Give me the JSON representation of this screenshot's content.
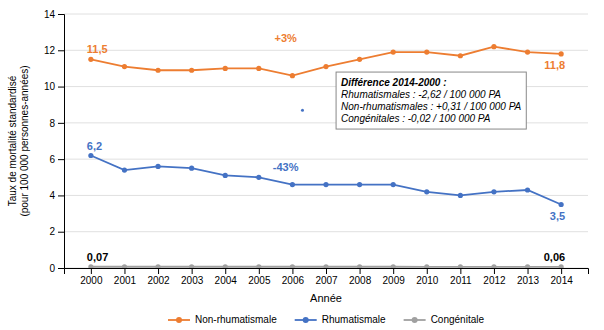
{
  "chart_data": {
    "type": "line",
    "x": [
      2000,
      2001,
      2002,
      2003,
      2004,
      2005,
      2006,
      2007,
      2008,
      2009,
      2010,
      2011,
      2012,
      2013,
      2014
    ],
    "xlim": [
      1999.2,
      2014.8
    ],
    "xticks": [
      2000,
      2001,
      2002,
      2003,
      2004,
      2005,
      2006,
      2007,
      2008,
      2009,
      2010,
      2011,
      2012,
      2013,
      2014
    ],
    "ylim": [
      0,
      14
    ],
    "yticks": [
      0,
      2,
      4,
      6,
      8,
      10,
      12,
      14
    ],
    "xlabel": "Année",
    "ylabel": "Taux de mortalité standardisé\n(pour 100 000 personnes-années)",
    "grid": "y",
    "legend": "bottom",
    "marker": "circle",
    "series": [
      {
        "name": "Non-rhumatismale",
        "color": "#ED7D31",
        "values": [
          11.5,
          11.1,
          10.9,
          10.9,
          11.0,
          11.0,
          10.6,
          11.1,
          11.5,
          11.9,
          11.9,
          11.7,
          12.2,
          11.9,
          11.8
        ]
      },
      {
        "name": "Rhumatismale",
        "color": "#4472C4",
        "values": [
          6.2,
          5.4,
          5.6,
          5.5,
          5.1,
          5.0,
          4.6,
          4.6,
          4.6,
          4.6,
          4.2,
          4.0,
          4.2,
          4.3,
          3.5
        ]
      },
      {
        "name": "Congénitale",
        "color": "#A0A0A0",
        "values": [
          0.07,
          0.07,
          0.07,
          0.07,
          0.07,
          0.07,
          0.07,
          0.07,
          0.07,
          0.07,
          0.06,
          0.06,
          0.06,
          0.06,
          0.06
        ]
      }
    ],
    "annotations": [
      {
        "text": "11,5",
        "x": 2000,
        "y": 11.5,
        "color": "#ED7D31"
      },
      {
        "text": "11,8",
        "x": 2014,
        "y": 11.8,
        "color": "#ED7D31"
      },
      {
        "text": "6,2",
        "x": 2000,
        "y": 6.2,
        "color": "#4472C4"
      },
      {
        "text": "3,5",
        "x": 2014,
        "y": 3.5,
        "color": "#4472C4"
      },
      {
        "text": "0,07",
        "x": 2000,
        "y": 0.07,
        "color": "#000000"
      },
      {
        "text": "0,06",
        "x": 2014,
        "y": 0.06,
        "color": "#000000"
      },
      {
        "text": "-43%",
        "x": 2005.8,
        "y": 5.5,
        "color": "#4472C4"
      },
      {
        "text": "+3%",
        "x": 2005.8,
        "y": 12.6,
        "color": "#ED7D31"
      },
      {
        "title": "Différence 2014-2000 :",
        "lines": [
          "Rhumatismales : -2,62 / 100 000 PA",
          "Non-rhumatismales : +0,31 / 100 000 PA",
          "Congénitales : -0,02 / 100 000 PA"
        ],
        "x": 2007.3,
        "y": 10.8
      }
    ],
    "points": [
      {
        "x": 2006.3,
        "y": 8.7,
        "color": "#4472C4"
      }
    ]
  }
}
